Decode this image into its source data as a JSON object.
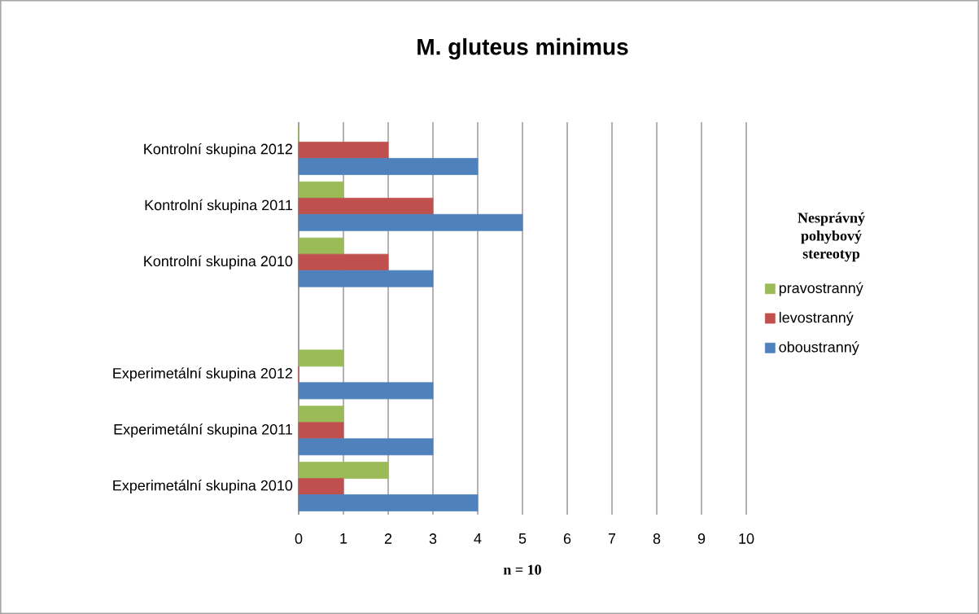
{
  "chart_data": {
    "type": "bar",
    "orientation": "horizontal",
    "title": "M. gluteus minimus",
    "xlabel": "n = 10",
    "legend_title": "Nesprávný pohybový stereotyp",
    "categories": [
      "Kontrolní skupina 2012",
      "Kontrolní skupina 2011",
      "Kontrolní skupina 2010",
      null,
      "Experimetální skupina 2012",
      "Experimetální skupina 2011",
      "Experimetální skupina 2010"
    ],
    "series": [
      {
        "name": "pravostranný",
        "color": "#9bbb59",
        "values": [
          0,
          1,
          1,
          null,
          1,
          1,
          2
        ]
      },
      {
        "name": "levostranný",
        "color": "#c0504d",
        "values": [
          2,
          3,
          2,
          null,
          0,
          1,
          1
        ]
      },
      {
        "name": "oboustranný",
        "color": "#4f81bd",
        "values": [
          4,
          5,
          3,
          null,
          3,
          3,
          4
        ]
      }
    ],
    "xlim": [
      0,
      10
    ],
    "xticks": [
      0,
      1,
      2,
      3,
      4,
      5,
      6,
      7,
      8,
      9,
      10
    ],
    "grid": "x",
    "legend": "right"
  }
}
